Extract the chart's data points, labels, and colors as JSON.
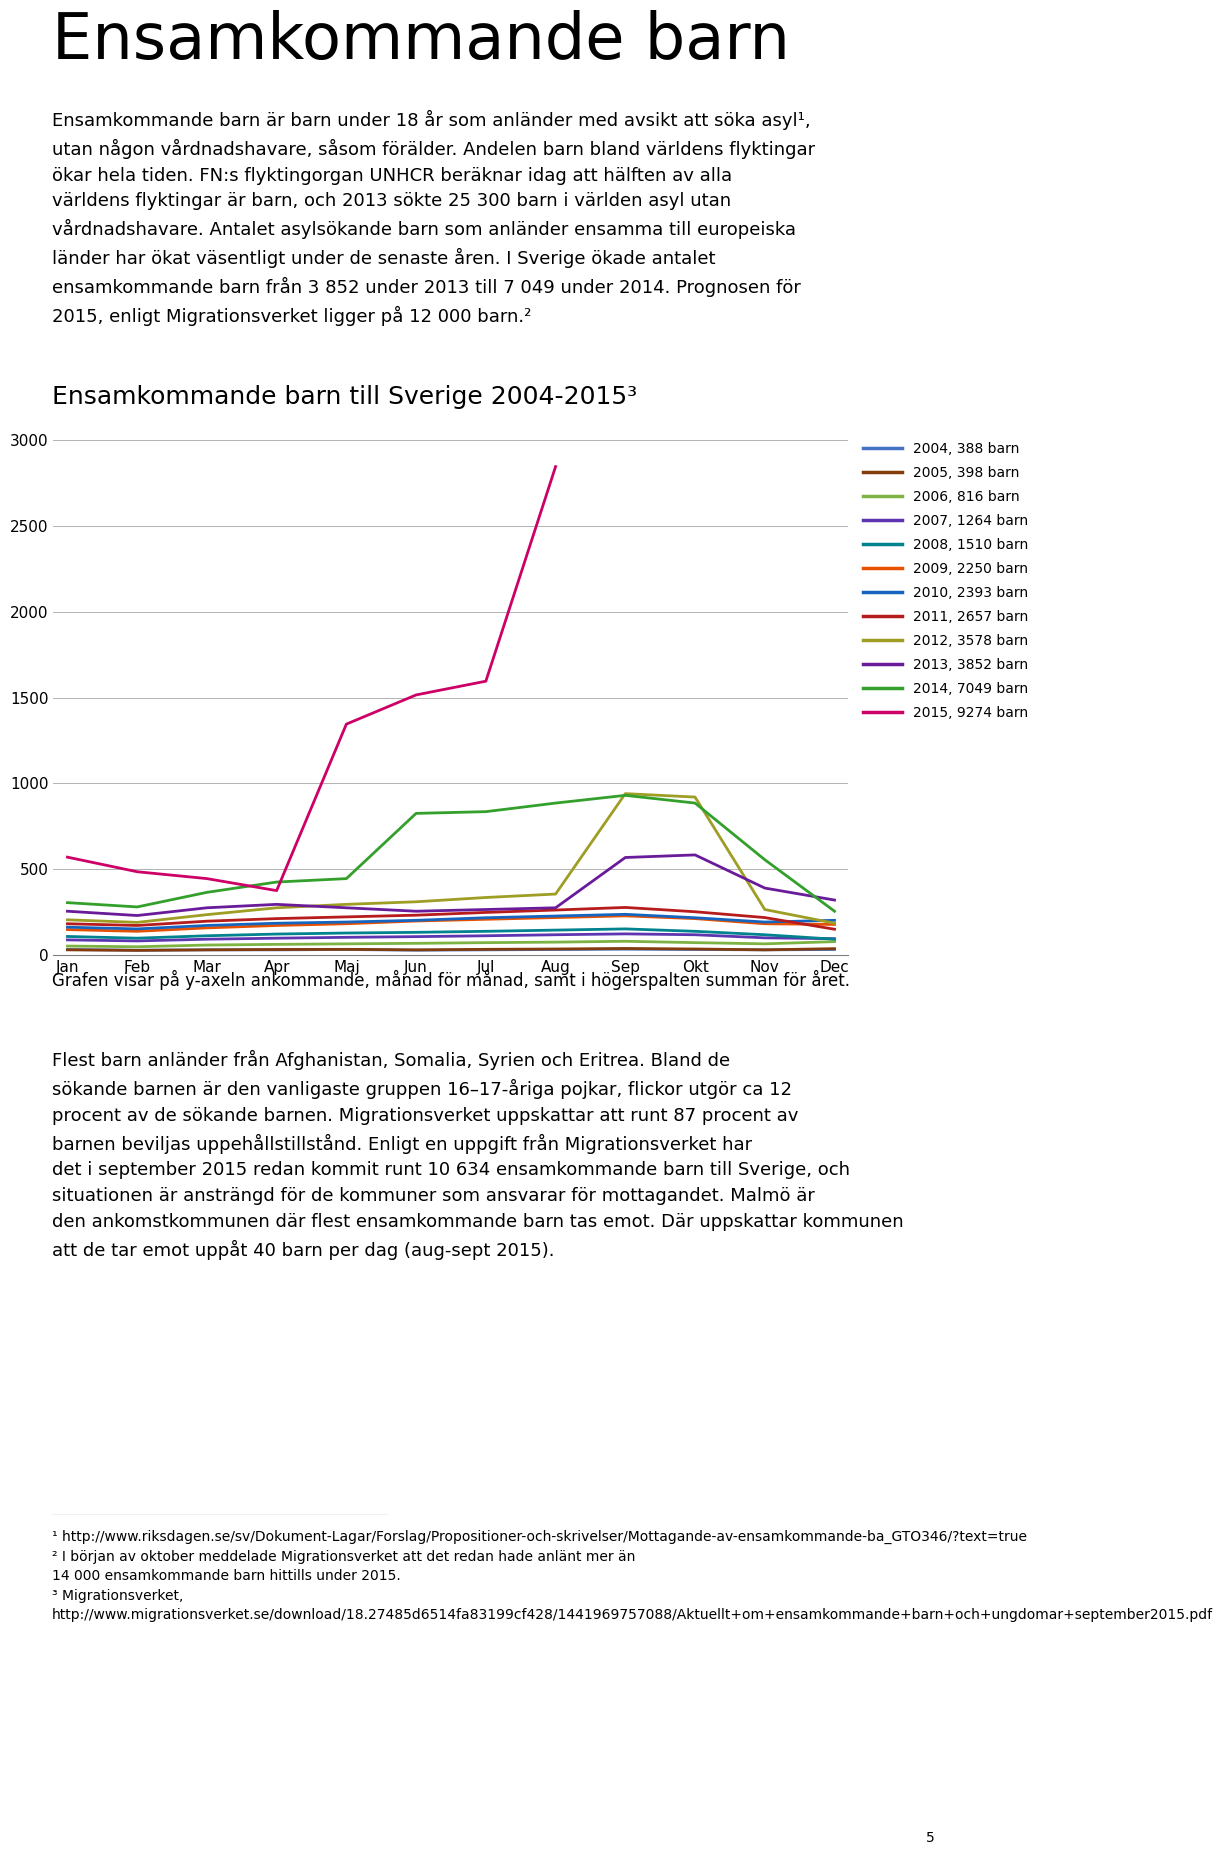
{
  "title": "Ensamkommande barn",
  "intro_text": "Ensamkommande barn är barn under 18 år som anländer med avsikt att söka asyl¹, utan någon vårdnadshavare, såsom förälder. Andelen barn bland världens flyktingar ökar hela tiden. FN:s flyktingorgan UNHCR beräknar idag att hälften av alla världens flyktingar är barn, och 2013 sökte 25 300 barn i världen asyl utan vårdnadshavare. Antalet asylsökande barn som anländer ensamma till europeiska länder har ökat väsentligt under de senaste åren. I Sverige ökade antalet ensamkommande barn från 3 852 under 2013 till 7 049 under 2014. Prognosen för 2015, enligt Migrationsverket ligger på 12 000 barn.²",
  "chart_title": "Ensamkommande barn till Sverige 2004-2015³",
  "xlabel_months": [
    "Jan",
    "Feb",
    "Mar",
    "Apr",
    "Maj",
    "Jun",
    "Jul",
    "Aug",
    "Sep",
    "Okt",
    "Nov",
    "Dec"
  ],
  "ylim": [
    0,
    3000
  ],
  "yticks": [
    0,
    500,
    1000,
    1500,
    2000,
    2500,
    3000
  ],
  "caption": "Grafen visar på y-axeln ankommande, månad för månad, samt i högerspalten summan för året.",
  "body_text": "Flest barn anländer från Afghanistan, Somalia, Syrien och Eritrea. Bland de sökande barnen är den vanligaste gruppen 16–17-åriga pojkar, flickor utgör ca 12 procent av de sökande barnen. Migrationsverket uppskattar att runt 87 procent av barnen beviljas uppehållstillstånd. Enligt en uppgift från Migrationsverket har det i september 2015 redan kommit runt 10 634 ensamkommande barn till Sverige, och situationen är ansträngd för de kommuner som ansvarar för mottagandet. Malmö är den ankomstkommunen där flest ensamkommande barn tas emot. Där uppskattar kommunen att de tar emot uppåt 40 barn per dag (aug-sept 2015).",
  "footnote_line": "————————————————————————",
  "footnote1": "¹ http://www.riksdagen.se/sv/Dokument-Lagar/Forslag/Propositioner-och-skrivelser/Mottagande-av-ensamkommande-ba_GTO346/?text=true",
  "footnote2": "² I början av oktober meddelade Migrationsverket att det redan hade anlänt mer än 14 000 ensamkommande barn hittills under 2015.",
  "footnote3": "³ Migrationsverket,\nhttp://www.migrationsverket.se/download/18.27485d6514fa83199cf428/1441969757088/Aktuellt+om+ensamkommande+barn+och+ungdomar+september2015.pdf",
  "page_number": "5",
  "series": [
    {
      "year": 2004,
      "total": 388,
      "color": "#4472C4",
      "values": [
        32,
        28,
        30,
        30,
        32,
        28,
        30,
        32,
        34,
        32,
        30,
        32
      ]
    },
    {
      "year": 2005,
      "total": 398,
      "color": "#843C0C",
      "values": [
        30,
        27,
        30,
        32,
        33,
        30,
        33,
        35,
        38,
        35,
        30,
        37
      ]
    },
    {
      "year": 2006,
      "total": 816,
      "color": "#7CB342",
      "values": [
        52,
        48,
        58,
        62,
        65,
        68,
        72,
        75,
        80,
        72,
        65,
        78
      ]
    },
    {
      "year": 2007,
      "total": 1264,
      "color": "#5E35B1",
      "values": [
        88,
        82,
        92,
        98,
        103,
        107,
        112,
        118,
        123,
        118,
        100,
        95
      ]
    },
    {
      "year": 2008,
      "total": 1510,
      "color": "#00838F",
      "values": [
        108,
        98,
        112,
        122,
        128,
        132,
        138,
        145,
        152,
        138,
        118,
        92
      ]
    },
    {
      "year": 2009,
      "total": 2250,
      "color": "#E65100",
      "values": [
        148,
        138,
        158,
        172,
        182,
        198,
        208,
        218,
        228,
        212,
        182,
        178
      ]
    },
    {
      "year": 2010,
      "total": 2393,
      "color": "#1565C0",
      "values": [
        162,
        152,
        172,
        185,
        192,
        202,
        217,
        227,
        237,
        217,
        192,
        202
      ]
    },
    {
      "year": 2011,
      "total": 2657,
      "color": "#B71C1C",
      "values": [
        182,
        172,
        197,
        212,
        222,
        232,
        248,
        262,
        277,
        252,
        218,
        150
      ]
    },
    {
      "year": 2012,
      "total": 3578,
      "color": "#9E9D24",
      "values": [
        205,
        190,
        235,
        275,
        295,
        310,
        335,
        355,
        940,
        920,
        265,
        185
      ]
    },
    {
      "year": 2013,
      "total": 3852,
      "color": "#6A1B9A",
      "values": [
        255,
        230,
        275,
        295,
        275,
        255,
        265,
        275,
        568,
        583,
        390,
        320
      ]
    },
    {
      "year": 2014,
      "total": 7049,
      "color": "#33A02C",
      "values": [
        305,
        280,
        365,
        425,
        445,
        825,
        835,
        885,
        930,
        885,
        555,
        255
      ]
    },
    {
      "year": 2015,
      "total": 9274,
      "color": "#CC0066",
      "values": [
        570,
        485,
        445,
        375,
        1345,
        1515,
        1595,
        2845,
        null,
        null,
        null,
        null
      ]
    }
  ]
}
